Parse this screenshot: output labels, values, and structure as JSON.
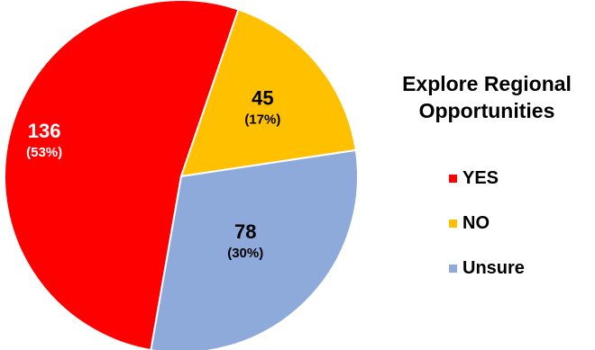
{
  "chart_data": {
    "type": "pie",
    "title_lines": [
      "Explore Regional",
      "Opportunities"
    ],
    "slices": [
      {
        "name": "YES",
        "value": 136,
        "percent_label": "(53%)",
        "color": "#ff0000"
      },
      {
        "name": "NO",
        "value": 45,
        "percent_label": "(17%)",
        "color": "#ffc000"
      },
      {
        "name": "Unsure",
        "value": 78,
        "percent_label": "(30%)",
        "color": "#8eaadb"
      }
    ],
    "legend_position": "right"
  }
}
